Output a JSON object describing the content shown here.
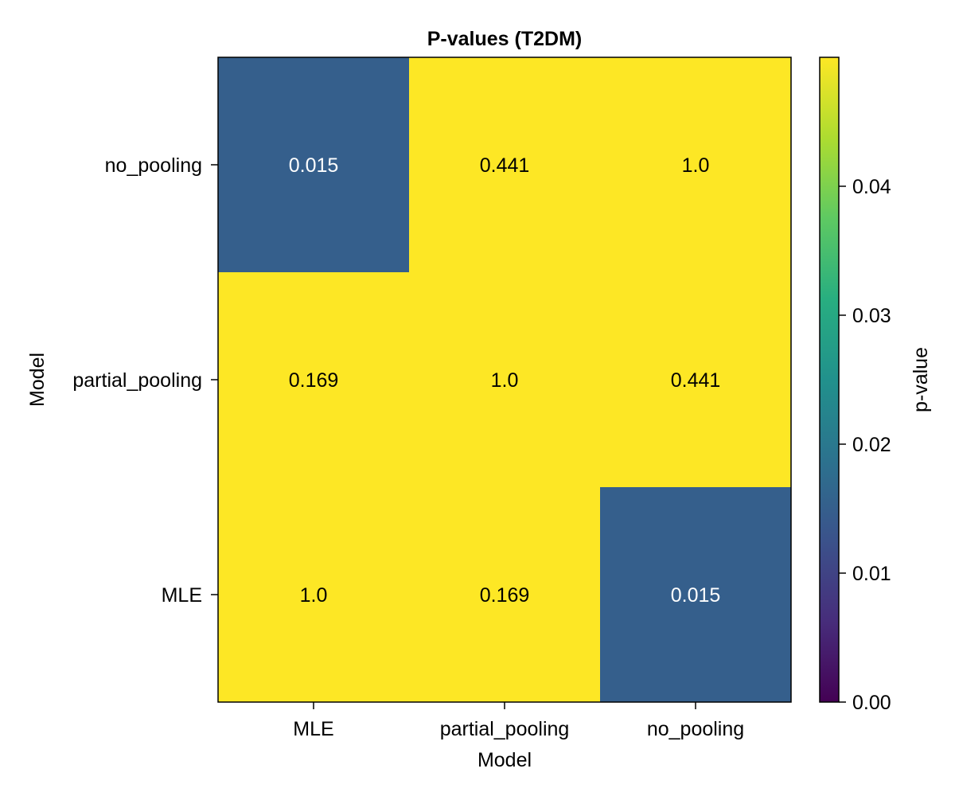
{
  "chart_data": {
    "type": "heatmap",
    "title": "P-values (T2DM)",
    "xlabel": "Model",
    "ylabel": "Model",
    "x_categories": [
      "MLE",
      "partial_pooling",
      "no_pooling"
    ],
    "y_categories": [
      "MLE",
      "partial_pooling",
      "no_pooling"
    ],
    "rows_top_to_bottom": [
      "no_pooling",
      "partial_pooling",
      "MLE"
    ],
    "values": [
      [
        0.015,
        0.441,
        1.0
      ],
      [
        0.169,
        1.0,
        0.441
      ],
      [
        1.0,
        0.169,
        0.015
      ]
    ],
    "cell_labels": [
      [
        "0.015",
        "0.441",
        "1.0"
      ],
      [
        "0.169",
        "1.0",
        "0.441"
      ],
      [
        "1.0",
        "0.169",
        "0.015"
      ]
    ],
    "colorbar": {
      "label": "p-value",
      "range": [
        0.0,
        0.05
      ],
      "ticks": [
        0.0,
        0.01,
        0.02,
        0.03,
        0.04
      ],
      "tick_labels": [
        "0.00",
        "0.01",
        "0.02",
        "0.03",
        "0.04"
      ],
      "colormap": "viridis",
      "high_color": "#fde725",
      "low_color": "#440154"
    },
    "grid": false,
    "legend": "none"
  }
}
